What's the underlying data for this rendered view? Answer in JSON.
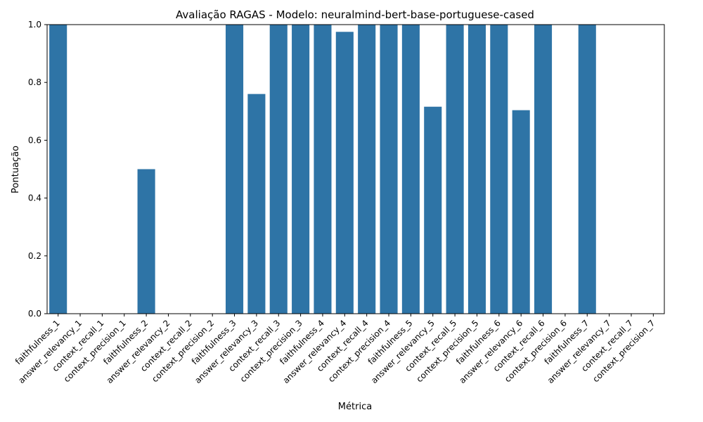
{
  "chart_data": {
    "type": "bar",
    "title": "Avaliação RAGAS - Modelo: neuralmind-bert-base-portuguese-cased",
    "xlabel": "Métrica",
    "ylabel": "Pontuação",
    "ylim": [
      0,
      1.0
    ],
    "yticks": [
      "0.0",
      "0.2",
      "0.4",
      "0.6",
      "0.8",
      "1.0"
    ],
    "bar_color": "#2e74a6",
    "categories": [
      "faithfulness_1",
      "answer_relevancy_1",
      "context_recall_1",
      "context_precision_1",
      "faithfulness_2",
      "answer_relevancy_2",
      "context_recall_2",
      "context_precision_2",
      "faithfulness_3",
      "answer_relevancy_3",
      "context_recall_3",
      "context_precision_3",
      "faithfulness_4",
      "answer_relevancy_4",
      "context_recall_4",
      "context_precision_4",
      "faithfulness_5",
      "answer_relevancy_5",
      "context_recall_5",
      "context_precision_5",
      "faithfulness_6",
      "answer_relevancy_6",
      "context_recall_6",
      "context_precision_6",
      "faithfulness_7",
      "answer_relevancy_7",
      "context_recall_7",
      "context_precision_7"
    ],
    "values": [
      1.0,
      0,
      0,
      0,
      0.5,
      0,
      0,
      0,
      1.0,
      0.76,
      1.0,
      1.0,
      1.0,
      0.975,
      1.0,
      1.0,
      1.0,
      0.716,
      1.0,
      1.0,
      1.0,
      0.704,
      1.0,
      0,
      1.0,
      0,
      0,
      0
    ]
  }
}
